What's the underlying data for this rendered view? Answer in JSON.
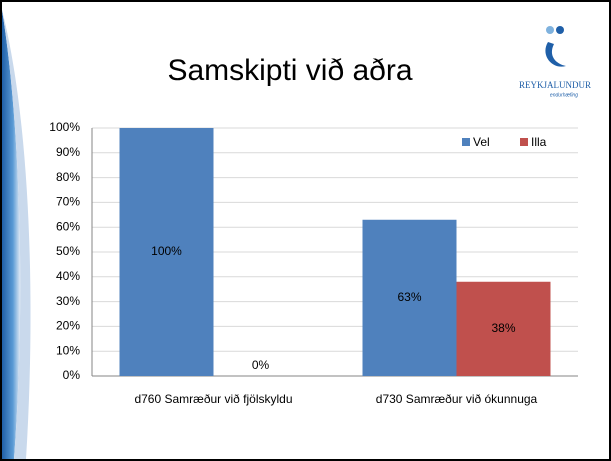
{
  "chart_data": {
    "type": "bar",
    "title": "Samskipti við aðra",
    "logo": {
      "name": "REYKJALUNDUR",
      "tagline": "endurhæfing"
    },
    "categories": [
      "d760 Samræður við fjölskyldu",
      "d730 Samræður við ókunnuga"
    ],
    "series": [
      {
        "name": "Vel",
        "color": "#4f81bd",
        "values": [
          100,
          63
        ],
        "value_labels": [
          "100%",
          "63%"
        ]
      },
      {
        "name": "Illa",
        "color": "#c0504d",
        "values": [
          0,
          38
        ],
        "value_labels": [
          "0%",
          "38%"
        ]
      }
    ],
    "ylim": [
      0,
      100
    ],
    "yticks": [
      {
        "value": 0,
        "label": "0%"
      },
      {
        "value": 10,
        "label": "10%"
      },
      {
        "value": 20,
        "label": "20%"
      },
      {
        "value": 30,
        "label": "30%"
      },
      {
        "value": 40,
        "label": "40%"
      },
      {
        "value": 50,
        "label": "50%"
      },
      {
        "value": 60,
        "label": "60%"
      },
      {
        "value": 70,
        "label": "70%"
      },
      {
        "value": 80,
        "label": "80%"
      },
      {
        "value": 90,
        "label": "90%"
      },
      {
        "value": 100,
        "label": "100%"
      }
    ],
    "grid": true,
    "legend": "top-right"
  }
}
